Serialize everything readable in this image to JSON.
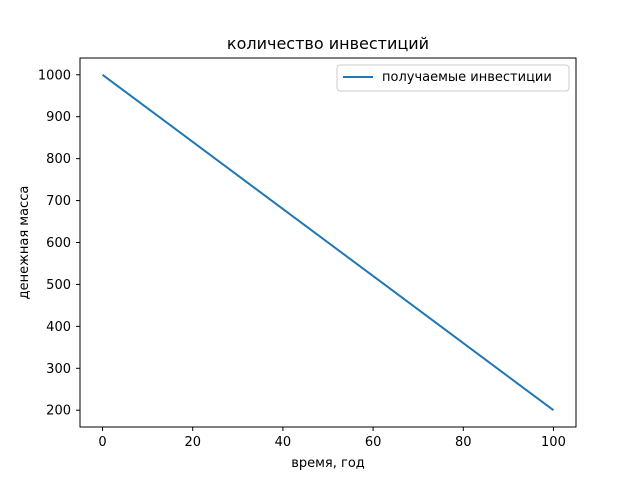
{
  "chart_data": {
    "type": "line",
    "title": "количество инвестиций",
    "xlabel": "время, год",
    "ylabel": "денежная масса",
    "xlim": [
      -5,
      105
    ],
    "ylim": [
      160,
      1040
    ],
    "xticks": [
      0,
      20,
      40,
      60,
      80,
      100
    ],
    "yticks": [
      200,
      300,
      400,
      500,
      600,
      700,
      800,
      900,
      1000
    ],
    "grid": false,
    "legend_position": "top-right",
    "series": [
      {
        "name": "получаемые инвестиции",
        "color": "#1f77b4",
        "x": [
          0,
          100
        ],
        "y": [
          1000,
          200
        ]
      }
    ]
  }
}
